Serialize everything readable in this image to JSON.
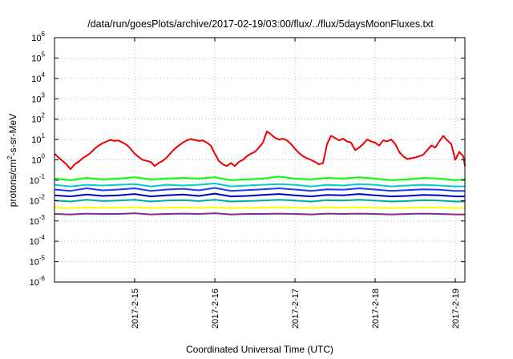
{
  "chart_data": {
    "type": "line",
    "title": "/data/run/goesPlots/archive/2017-02-19/03:00/flux/../flux/5daysMoonFluxes.txt",
    "xlabel": "Coordinated Universal Time (UTC)",
    "ylabel": "protons/cm2-s-sr-MeV",
    "ylabel_parts": {
      "base": "protons/cm",
      "sup": "2",
      "rest": "-s-sr-MeV"
    },
    "y_scale": "log",
    "ylim": [
      1e-06,
      1000000.0
    ],
    "y_ticks": [
      {
        "base": "10",
        "exp": "-6",
        "value": 1e-06
      },
      {
        "base": "10",
        "exp": "-5",
        "value": 1e-05
      },
      {
        "base": "10",
        "exp": "-4",
        "value": 0.0001
      },
      {
        "base": "10",
        "exp": "-3",
        "value": 0.001
      },
      {
        "base": "10",
        "exp": "-2",
        "value": 0.01
      },
      {
        "base": "10",
        "exp": "-1",
        "value": 0.1
      },
      {
        "base": "10",
        "exp": "0",
        "value": 1
      },
      {
        "base": "10",
        "exp": "1",
        "value": 10
      },
      {
        "base": "10",
        "exp": "2",
        "value": 100
      },
      {
        "base": "10",
        "exp": "3",
        "value": 1000
      },
      {
        "base": "10",
        "exp": "4",
        "value": 10000
      },
      {
        "base": "10",
        "exp": "5",
        "value": 100000
      },
      {
        "base": "10",
        "exp": "6",
        "value": 1000000
      }
    ],
    "x_ticks": [
      {
        "label": "2017-2-15",
        "value": 15
      },
      {
        "label": "2017-2-16",
        "value": 16
      },
      {
        "label": "2017-2-17",
        "value": 17
      },
      {
        "label": "2017-2-18",
        "value": 18
      },
      {
        "label": "2017-2-19",
        "value": 19
      }
    ],
    "x_unit": "day of February 2017 (UTC)",
    "xlim": [
      14.0,
      19.12
    ],
    "grid": true,
    "legend": "none",
    "series": [
      {
        "color": "#ee0000",
        "x": [
          14.0,
          14.05,
          14.1,
          14.15,
          14.2,
          14.25,
          14.3,
          14.35,
          14.4,
          14.45,
          14.5,
          14.55,
          14.6,
          14.65,
          14.7,
          14.75,
          14.8,
          14.85,
          14.9,
          14.95,
          15.0,
          15.05,
          15.1,
          15.15,
          15.2,
          15.25,
          15.3,
          15.35,
          15.4,
          15.45,
          15.5,
          15.55,
          15.6,
          15.65,
          15.7,
          15.75,
          15.8,
          15.85,
          15.9,
          15.95,
          16.0,
          16.05,
          16.1,
          16.15,
          16.2,
          16.25,
          16.3,
          16.35,
          16.4,
          16.45,
          16.5,
          16.55,
          16.6,
          16.65,
          16.7,
          16.75,
          16.8,
          16.85,
          16.9,
          16.95,
          17.0,
          17.05,
          17.1,
          17.15,
          17.2,
          17.25,
          17.3,
          17.35,
          17.4,
          17.45,
          17.5,
          17.55,
          17.6,
          17.65,
          17.7,
          17.75,
          17.8,
          17.85,
          17.9,
          17.95,
          18.0,
          18.05,
          18.1,
          18.15,
          18.2,
          18.25,
          18.3,
          18.35,
          18.4,
          18.45,
          18.5,
          18.55,
          18.6,
          18.65,
          18.7,
          18.75,
          18.8,
          18.85,
          18.9,
          18.95,
          19.0,
          19.05,
          19.1,
          19.12
        ],
        "y": [
          2.0,
          1.3,
          0.9,
          0.6,
          0.35,
          0.6,
          0.8,
          1.2,
          1.6,
          2.2,
          3.5,
          5.0,
          6.5,
          8.0,
          9.5,
          8.5,
          9.0,
          7.0,
          5.5,
          3.5,
          2.0,
          1.4,
          1.0,
          0.9,
          0.8,
          0.5,
          0.7,
          0.9,
          1.3,
          2.2,
          3.5,
          5.0,
          7.0,
          9.0,
          10.5,
          9.5,
          8.5,
          9.0,
          7.0,
          5.0,
          2.0,
          0.9,
          0.6,
          0.5,
          0.7,
          0.5,
          0.8,
          1.0,
          1.5,
          2.0,
          2.5,
          4.0,
          7.0,
          25.0,
          18.0,
          12.0,
          10.0,
          11.0,
          9.0,
          6.0,
          3.5,
          2.2,
          1.5,
          1.2,
          1.0,
          0.8,
          0.6,
          0.7,
          6.0,
          15.0,
          12.0,
          9.0,
          11.0,
          8.0,
          7.0,
          3.0,
          4.0,
          6.0,
          10.0,
          8.0,
          7.0,
          5.0,
          9.0,
          8.0,
          10.0,
          6.0,
          2.5,
          1.5,
          1.1,
          1.2,
          1.3,
          1.5,
          1.8,
          3.0,
          5.0,
          4.0,
          8.0,
          15.0,
          9.0,
          6.0,
          1.0,
          2.5,
          1.5,
          0.5
        ]
      },
      {
        "color": "#00ff00",
        "x": [
          14.0,
          14.2,
          14.4,
          14.6,
          14.8,
          15.0,
          15.2,
          15.4,
          15.6,
          15.8,
          16.0,
          16.2,
          16.4,
          16.6,
          16.8,
          17.0,
          17.2,
          17.4,
          17.6,
          17.8,
          18.0,
          18.2,
          18.4,
          18.6,
          18.8,
          19.0,
          19.12
        ],
        "y": [
          0.12,
          0.1,
          0.13,
          0.11,
          0.12,
          0.14,
          0.11,
          0.12,
          0.13,
          0.12,
          0.14,
          0.1,
          0.11,
          0.12,
          0.15,
          0.12,
          0.11,
          0.13,
          0.12,
          0.14,
          0.12,
          0.1,
          0.11,
          0.13,
          0.12,
          0.1,
          0.11
        ]
      },
      {
        "color": "#00cccc",
        "x": [
          14.0,
          14.2,
          14.4,
          14.6,
          14.8,
          15.0,
          15.2,
          15.4,
          15.6,
          15.8,
          16.0,
          16.2,
          16.4,
          16.6,
          16.8,
          17.0,
          17.2,
          17.4,
          17.6,
          17.8,
          18.0,
          18.2,
          18.4,
          18.6,
          18.8,
          19.0,
          19.12
        ],
        "y": [
          0.06,
          0.05,
          0.06,
          0.055,
          0.06,
          0.065,
          0.05,
          0.06,
          0.055,
          0.06,
          0.07,
          0.05,
          0.055,
          0.06,
          0.065,
          0.06,
          0.05,
          0.06,
          0.055,
          0.065,
          0.06,
          0.05,
          0.055,
          0.06,
          0.055,
          0.05,
          0.05
        ]
      },
      {
        "color": "#1a3cff",
        "x": [
          14.0,
          14.2,
          14.4,
          14.6,
          14.8,
          15.0,
          15.2,
          15.4,
          15.6,
          15.8,
          16.0,
          16.2,
          16.4,
          16.6,
          16.8,
          17.0,
          17.2,
          17.4,
          17.6,
          17.8,
          18.0,
          18.2,
          18.4,
          18.6,
          18.8,
          19.0,
          19.12
        ],
        "y": [
          0.035,
          0.03,
          0.04,
          0.032,
          0.035,
          0.04,
          0.03,
          0.035,
          0.038,
          0.032,
          0.042,
          0.03,
          0.033,
          0.036,
          0.04,
          0.035,
          0.03,
          0.036,
          0.034,
          0.04,
          0.035,
          0.03,
          0.033,
          0.036,
          0.034,
          0.03,
          0.03
        ]
      },
      {
        "color": "#0000cc",
        "x": [
          14.0,
          14.2,
          14.4,
          14.6,
          14.8,
          15.0,
          15.2,
          15.4,
          15.6,
          15.8,
          16.0,
          16.2,
          16.4,
          16.6,
          16.8,
          17.0,
          17.2,
          17.4,
          17.6,
          17.8,
          18.0,
          18.2,
          18.4,
          18.6,
          18.8,
          19.0,
          19.12
        ],
        "y": [
          0.018,
          0.016,
          0.02,
          0.017,
          0.018,
          0.021,
          0.016,
          0.018,
          0.02,
          0.017,
          0.022,
          0.016,
          0.017,
          0.019,
          0.021,
          0.018,
          0.016,
          0.019,
          0.018,
          0.021,
          0.018,
          0.016,
          0.017,
          0.019,
          0.018,
          0.016,
          0.016
        ]
      },
      {
        "color": "#00aaaa",
        "x": [
          14.0,
          14.2,
          14.4,
          14.6,
          14.8,
          15.0,
          15.2,
          15.4,
          15.6,
          15.8,
          16.0,
          16.2,
          16.4,
          16.6,
          16.8,
          17.0,
          17.2,
          17.4,
          17.6,
          17.8,
          18.0,
          18.2,
          18.4,
          18.6,
          18.8,
          19.0,
          19.12
        ],
        "y": [
          0.01,
          0.009,
          0.011,
          0.0095,
          0.01,
          0.011,
          0.009,
          0.01,
          0.0105,
          0.0095,
          0.011,
          0.009,
          0.0095,
          0.01,
          0.011,
          0.01,
          0.009,
          0.0105,
          0.01,
          0.011,
          0.01,
          0.009,
          0.0095,
          0.0105,
          0.01,
          0.009,
          0.009
        ]
      },
      {
        "color": "#ffff00",
        "x": [
          14.0,
          14.2,
          14.4,
          14.6,
          14.8,
          15.0,
          15.2,
          15.4,
          15.6,
          15.8,
          16.0,
          16.2,
          16.4,
          16.6,
          16.8,
          17.0,
          17.2,
          17.4,
          17.6,
          17.8,
          18.0,
          18.2,
          18.4,
          18.6,
          18.8,
          19.0,
          19.12
        ],
        "y": [
          0.0045,
          0.0042,
          0.0046,
          0.0044,
          0.0045,
          0.0047,
          0.0043,
          0.0045,
          0.0046,
          0.0044,
          0.0047,
          0.0042,
          0.0044,
          0.0045,
          0.0047,
          0.0045,
          0.0043,
          0.0046,
          0.0045,
          0.0047,
          0.0045,
          0.0042,
          0.0044,
          0.0046,
          0.0045,
          0.0043,
          0.0043
        ]
      },
      {
        "color": "#8b2b8b",
        "x": [
          14.0,
          14.2,
          14.4,
          14.6,
          14.8,
          15.0,
          15.2,
          15.4,
          15.6,
          15.8,
          16.0,
          16.2,
          16.4,
          16.6,
          16.8,
          17.0,
          17.2,
          17.4,
          17.6,
          17.8,
          18.0,
          18.2,
          18.4,
          18.6,
          18.8,
          19.0,
          19.12
        ],
        "y": [
          0.0022,
          0.0021,
          0.0023,
          0.0022,
          0.0022,
          0.0024,
          0.0021,
          0.0022,
          0.0023,
          0.0022,
          0.0024,
          0.0021,
          0.0022,
          0.0022,
          0.0023,
          0.0022,
          0.0021,
          0.0023,
          0.0022,
          0.0023,
          0.0022,
          0.0021,
          0.0022,
          0.0023,
          0.0022,
          0.0021,
          0.0021
        ]
      }
    ]
  }
}
